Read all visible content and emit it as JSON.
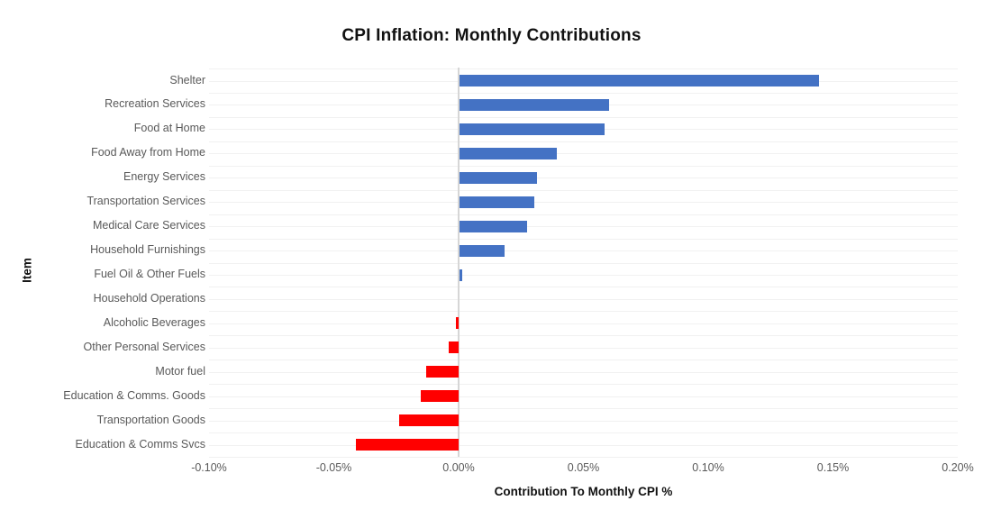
{
  "title": "CPI Inflation: Monthly Contributions",
  "chart_data": {
    "type": "bar",
    "orientation": "horizontal",
    "title": "CPI Inflation: Monthly Contributions",
    "xlabel": "Contribution To Monthly CPI %",
    "ylabel": "Item",
    "categories": [
      "Shelter",
      "Recreation Services",
      "Food at Home",
      "Food Away from Home",
      "Energy Services",
      "Transportation Services",
      "Medical Care Services",
      "Household Furnishings",
      "Fuel Oil & Other Fuels",
      "Household Operations",
      "Alcoholic Beverages",
      "Other Personal Services",
      "Motor fuel",
      "Education & Comms. Goods",
      "Transportation Goods",
      "Education & Comms Svcs"
    ],
    "values": [
      0.144,
      0.06,
      0.058,
      0.039,
      0.031,
      0.03,
      0.027,
      0.018,
      0.001,
      0.0,
      -0.001,
      -0.004,
      -0.013,
      -0.015,
      -0.024,
      -0.041
    ],
    "xlim": [
      -0.1,
      0.2
    ],
    "xticks": [
      {
        "value": -0.1,
        "label": "-0.10%"
      },
      {
        "value": -0.05,
        "label": "-0.05%"
      },
      {
        "value": 0.0,
        "label": "0.00%"
      },
      {
        "value": 0.05,
        "label": "0.05%"
      },
      {
        "value": 0.1,
        "label": "0.10%"
      },
      {
        "value": 0.15,
        "label": "0.15%"
      },
      {
        "value": 0.2,
        "label": "0.20%"
      }
    ],
    "positive_color": "#4472C4",
    "negative_color": "#FF0000",
    "gridline_color": "#F1F1F1",
    "axis_line_color": "#D6D6D6",
    "tick_label_color": "#595959",
    "legend": "none",
    "grid": "horizontal-category-gridlines"
  }
}
